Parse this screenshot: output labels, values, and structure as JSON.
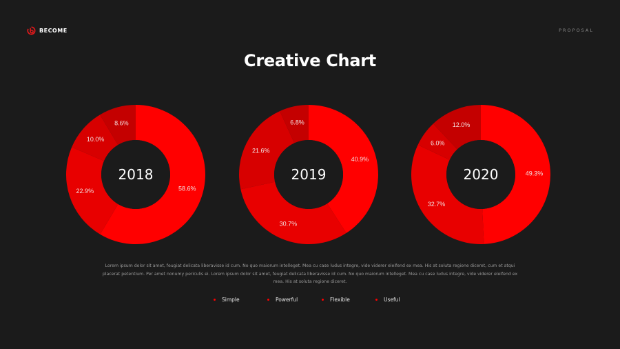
{
  "brand": {
    "name": "BECOME",
    "logo_icon": "become-logo-icon",
    "accent": "#e0191b"
  },
  "header": {
    "right_label": "PROPOSAL"
  },
  "title": "Creative Chart",
  "description": "Lorem ipsum dolor sit amet, feugiat delicata liberavisse id cum. No quo maiorum intelleget. Mea cu case ludus integre, vide viderer eleifend ex mea. His at soluta regione diceret, cum et atqui placerat petentium. Per amet nonumy periculis ei. Lorem ipsum dolor sit amet, feugiat delicata liberavisse id cum. No quo maiorum intelleget. Mea cu case ludus integre, vide viderer eleifend ex mea. His at soluta regione diceret.",
  "legend": [
    {
      "label": "Simple",
      "color": "#ff0000"
    },
    {
      "label": "Powerful",
      "color": "#ff0000"
    },
    {
      "label": "Flexible",
      "color": "#ff0000"
    },
    {
      "label": "Useful",
      "color": "#ff0000"
    }
  ],
  "chart_data": [
    {
      "type": "pie",
      "variant": "donut",
      "center_label": "2018",
      "categories": [
        "Simple",
        "Powerful",
        "Flexible",
        "Useful"
      ],
      "values": [
        58.6,
        22.9,
        10.0,
        8.6
      ],
      "labels": [
        "58.6%",
        "22.9%",
        "10.0%",
        "8.6%"
      ],
      "colors": [
        "#ff0000",
        "#e80000",
        "#d70000",
        "#c40000"
      ]
    },
    {
      "type": "pie",
      "variant": "donut",
      "center_label": "2019",
      "categories": [
        "Simple",
        "Powerful",
        "Flexible",
        "Useful"
      ],
      "values": [
        40.9,
        30.7,
        21.6,
        6.8
      ],
      "labels": [
        "40.9%",
        "30.7%",
        "21.6%",
        "6.8%"
      ],
      "colors": [
        "#ff0000",
        "#e80000",
        "#d70000",
        "#c40000"
      ]
    },
    {
      "type": "pie",
      "variant": "donut",
      "center_label": "2020",
      "categories": [
        "Simple",
        "Powerful",
        "Flexible",
        "Useful"
      ],
      "values": [
        49.3,
        32.7,
        6.0,
        12.0
      ],
      "labels": [
        "49.3%",
        "32.7%",
        "6.0%",
        "12.0%"
      ],
      "colors": [
        "#ff0000",
        "#e80000",
        "#d70000",
        "#c40000"
      ]
    }
  ]
}
